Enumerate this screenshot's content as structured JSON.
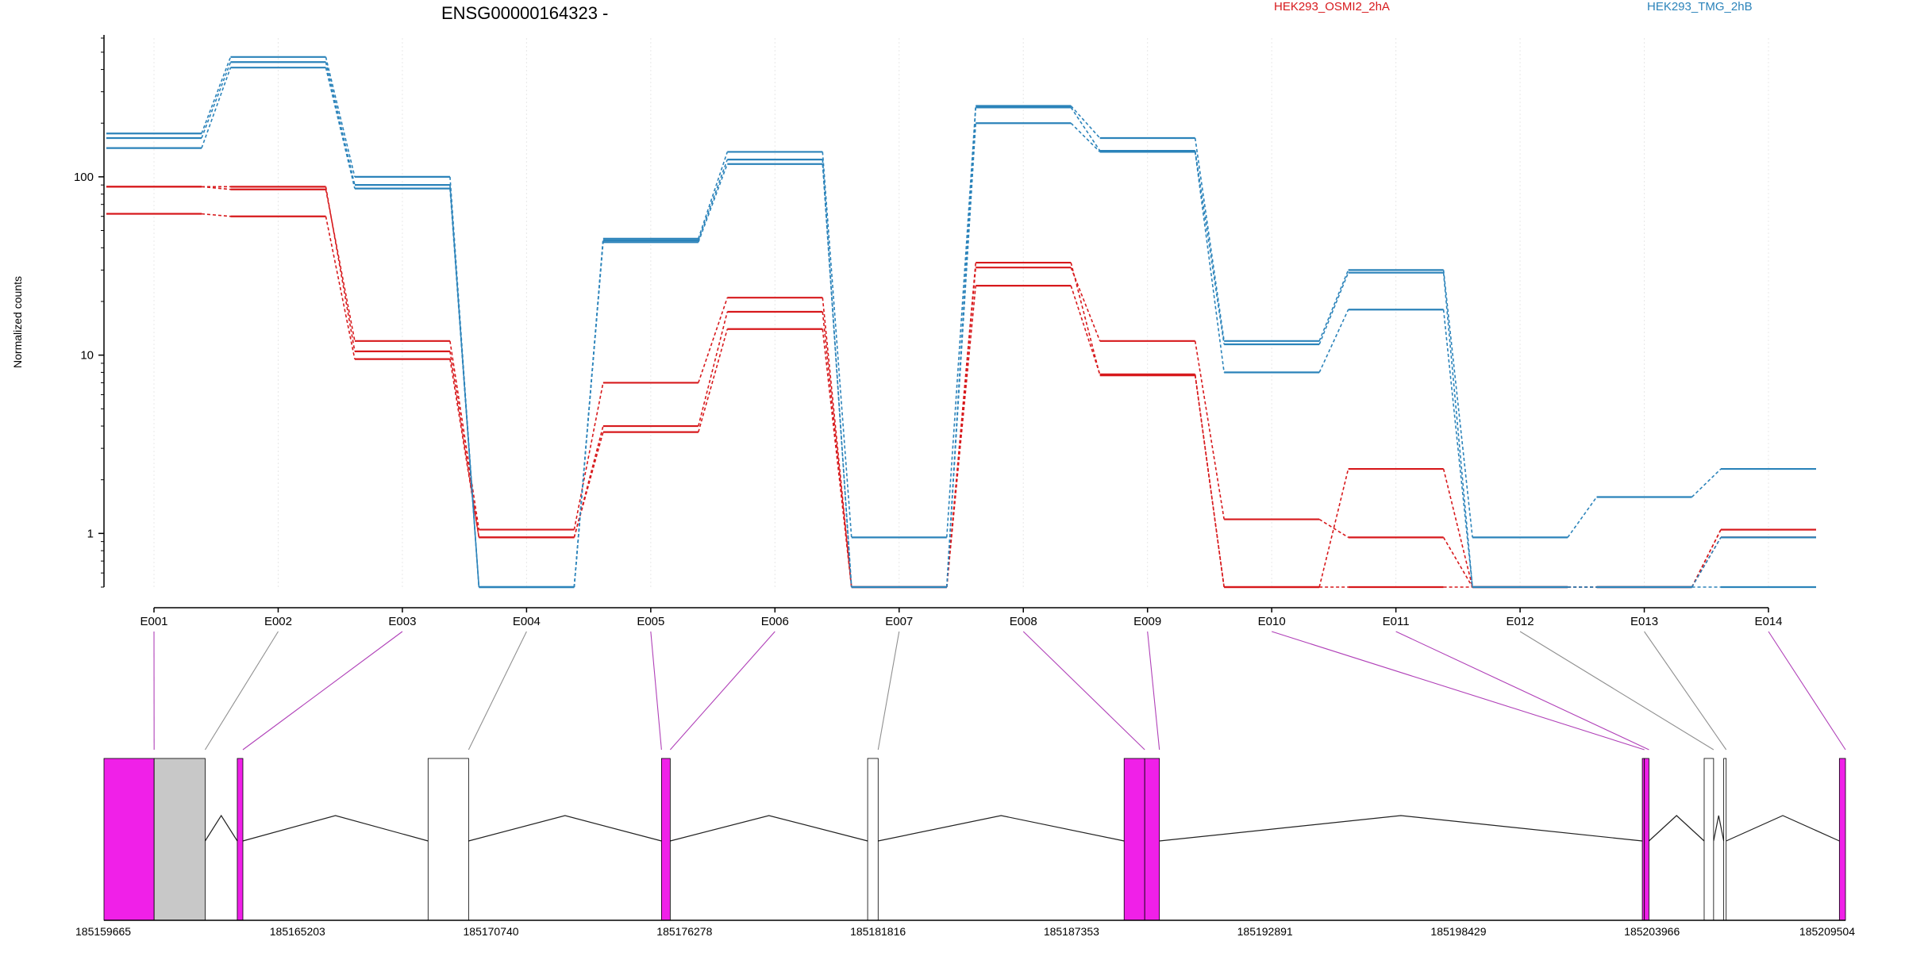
{
  "chart_data": {
    "type": "line",
    "title": "ENSG00000164323 -",
    "ylabel": "Normalized counts",
    "yscale": "log",
    "ylim": [
      0.5,
      600
    ],
    "yticks": [
      "1",
      "10",
      "100"
    ],
    "legend_placement": "top",
    "categories": [
      "E001",
      "E002",
      "E003",
      "E004",
      "E005",
      "E006",
      "E007",
      "E008",
      "E009",
      "E010",
      "E011",
      "E012",
      "E013",
      "E014"
    ],
    "groups": [
      {
        "name": "HEK293_OSMI2_2hA",
        "color": "#d7191c"
      },
      {
        "name": "HEK293_TMG_2hB",
        "color": "#2b83ba"
      }
    ],
    "series": [
      {
        "group": 0,
        "values": [
          88,
          88,
          10.5,
          0.95,
          4.0,
          17.5,
          0.5,
          31,
          12,
          1.2,
          0.95,
          0.5,
          0.5,
          1.05
        ]
      },
      {
        "group": 0,
        "values": [
          88,
          85,
          12,
          1.05,
          7.0,
          21,
          0.5,
          33,
          7.7,
          0.5,
          2.3,
          0.5,
          0.5,
          0.95
        ]
      },
      {
        "group": 0,
        "values": [
          62,
          60,
          9.5,
          0.95,
          3.7,
          14,
          0.5,
          24.5,
          7.8,
          0.5,
          0.5,
          0.5,
          0.5,
          1.05
        ]
      },
      {
        "group": 1,
        "values": [
          175,
          470,
          100,
          0.5,
          45,
          138,
          0.95,
          250,
          165,
          12,
          30,
          0.95,
          1.6,
          2.3
        ]
      },
      {
        "group": 1,
        "values": [
          165,
          440,
          90,
          0.5,
          44,
          125,
          0.5,
          245,
          140,
          11.5,
          29,
          0.5,
          0.5,
          0.95
        ]
      },
      {
        "group": 1,
        "values": [
          145,
          410,
          86,
          0.5,
          43,
          118,
          0.5,
          200,
          138,
          8.0,
          18,
          0.5,
          0.5,
          0.5
        ]
      }
    ],
    "gene_model": {
      "coordinate_labels": [
        "185159665",
        "185165203",
        "185170740",
        "185176278",
        "185181816",
        "185187353",
        "185192891",
        "185198429",
        "185203966",
        "185209504"
      ],
      "exon_fills": [
        "magenta",
        "grey",
        "magenta",
        "white",
        "magenta",
        "magenta",
        "white",
        "magenta",
        "magenta",
        "magenta",
        "magenta",
        "white",
        "white",
        "magenta"
      ]
    }
  },
  "colors": {
    "osmi": "#d7191c",
    "tmg": "#2b83ba",
    "overlap": "#6a3d9a",
    "magenta": "#f020e8",
    "grey": "#c8c8c8",
    "connector_magenta": "#b040b8",
    "connector_grey": "#909090"
  }
}
